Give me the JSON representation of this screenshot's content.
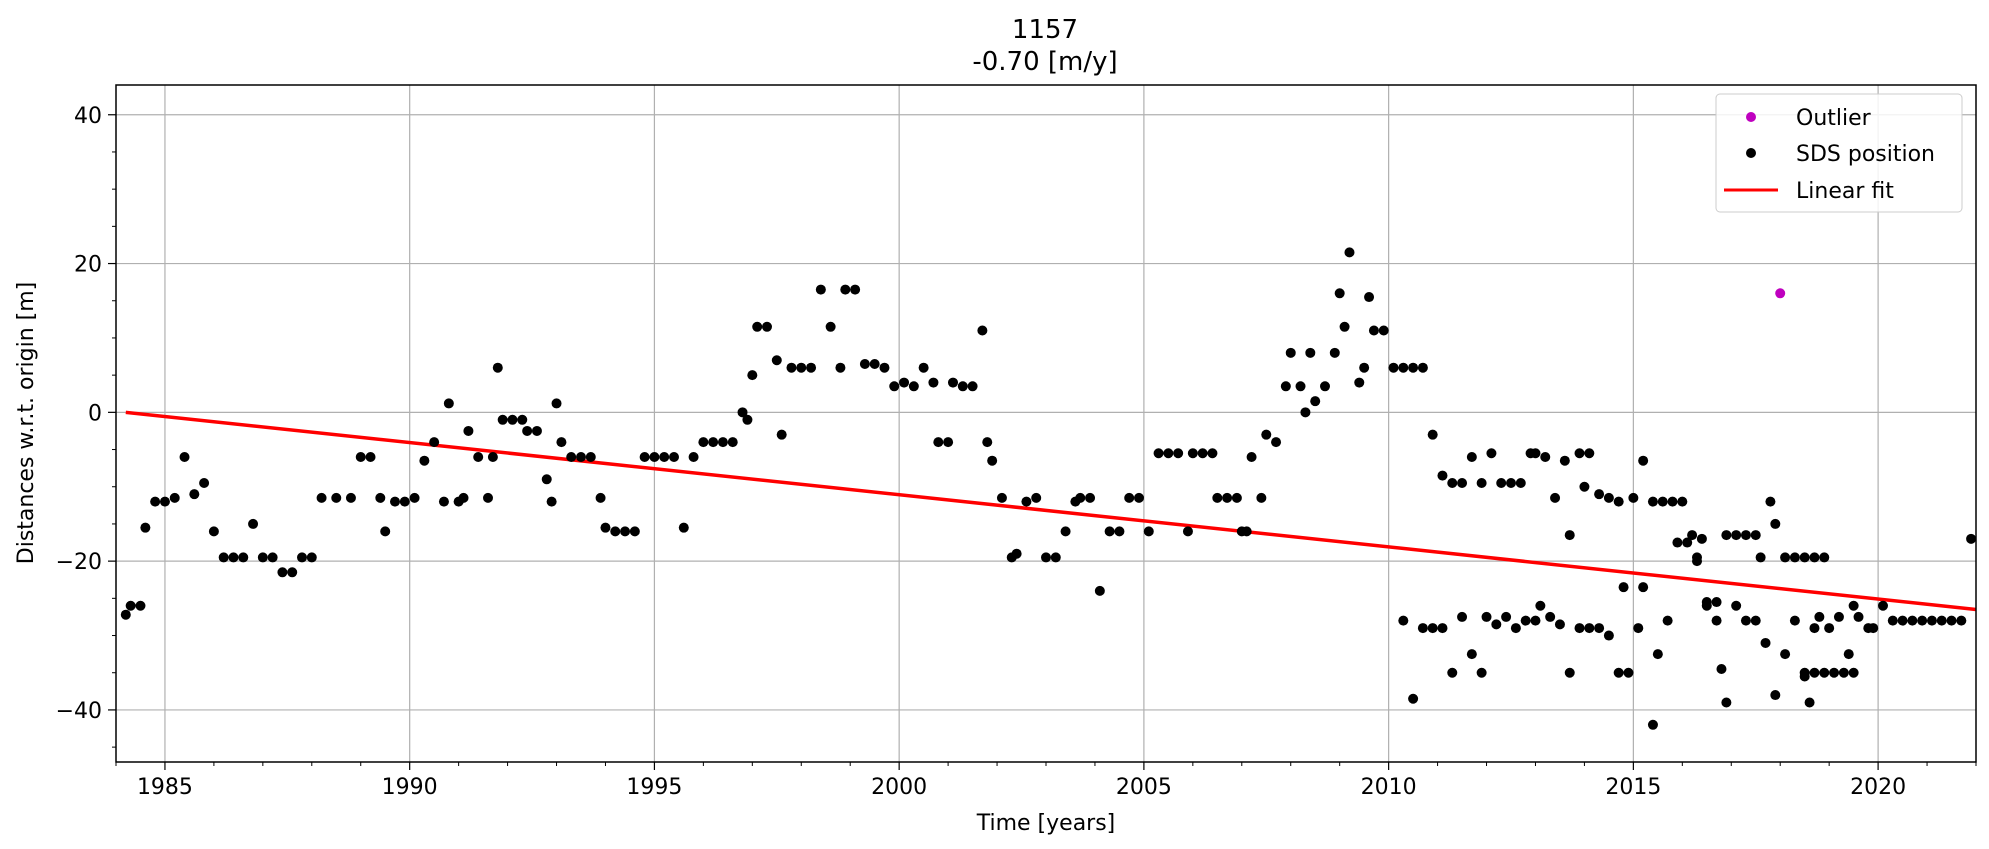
{
  "chart_data": {
    "type": "scatter",
    "title": "1157",
    "subtitle": "-0.70 [m/y]",
    "xlabel": "Time [years]",
    "ylabel": "Distances w.r.t. origin [m]",
    "xlim": [
      1984.0,
      2022.0
    ],
    "ylim": [
      -47,
      44
    ],
    "xticks": [
      1985,
      1990,
      1995,
      2000,
      2005,
      2010,
      2015,
      2020
    ],
    "yticks": [
      -40,
      -20,
      0,
      20,
      40
    ],
    "grid": true,
    "legend_position": "top-right",
    "colors": {
      "outlier": "#bf00bf",
      "sds": "#000000",
      "fit": "#ff0000",
      "grid": "#b0b0b0"
    },
    "legend": [
      "Outlier",
      "SDS position",
      "Linear fit"
    ],
    "series": [
      {
        "name": "Outlier",
        "marker": "dot",
        "points": [
          [
            2018.0,
            16
          ]
        ]
      },
      {
        "name": "SDS position",
        "marker": "dot",
        "points": [
          [
            1984.2,
            -27.2
          ],
          [
            1984.3,
            -26
          ],
          [
            1984.5,
            -26
          ],
          [
            1984.6,
            -15.5
          ],
          [
            1984.8,
            -12
          ],
          [
            1985.0,
            -12
          ],
          [
            1985.2,
            -11.5
          ],
          [
            1985.4,
            -6
          ],
          [
            1985.6,
            -11
          ],
          [
            1985.8,
            -9.5
          ],
          [
            1986.0,
            -16
          ],
          [
            1986.2,
            -19.5
          ],
          [
            1986.4,
            -19.5
          ],
          [
            1986.6,
            -19.5
          ],
          [
            1986.8,
            -15
          ],
          [
            1987.0,
            -19.5
          ],
          [
            1987.2,
            -19.5
          ],
          [
            1987.4,
            -21.5
          ],
          [
            1987.6,
            -21.5
          ],
          [
            1987.8,
            -19.5
          ],
          [
            1988.0,
            -19.5
          ],
          [
            1988.2,
            -11.5
          ],
          [
            1988.5,
            -11.5
          ],
          [
            1988.8,
            -11.5
          ],
          [
            1989.0,
            -6
          ],
          [
            1989.2,
            -6
          ],
          [
            1989.4,
            -11.5
          ],
          [
            1989.5,
            -16
          ],
          [
            1989.7,
            -12
          ],
          [
            1989.9,
            -12
          ],
          [
            1990.1,
            -11.5
          ],
          [
            1990.3,
            -6.5
          ],
          [
            1990.5,
            -4
          ],
          [
            1990.7,
            -12
          ],
          [
            1990.8,
            1.2
          ],
          [
            1991.0,
            -12
          ],
          [
            1991.1,
            -11.5
          ],
          [
            1991.2,
            -2.5
          ],
          [
            1991.4,
            -6
          ],
          [
            1991.6,
            -11.5
          ],
          [
            1991.7,
            -6
          ],
          [
            1991.8,
            6
          ],
          [
            1991.9,
            -1
          ],
          [
            1992.1,
            -1
          ],
          [
            1992.3,
            -1
          ],
          [
            1992.4,
            -2.5
          ],
          [
            1992.6,
            -2.5
          ],
          [
            1992.8,
            -9
          ],
          [
            1992.9,
            -12
          ],
          [
            1993.0,
            1.2
          ],
          [
            1993.1,
            -4
          ],
          [
            1993.3,
            -6
          ],
          [
            1993.5,
            -6
          ],
          [
            1993.7,
            -6
          ],
          [
            1993.9,
            -11.5
          ],
          [
            1994.0,
            -15.5
          ],
          [
            1994.2,
            -16
          ],
          [
            1994.4,
            -16
          ],
          [
            1994.6,
            -16
          ],
          [
            1994.8,
            -6
          ],
          [
            1995.0,
            -6
          ],
          [
            1995.2,
            -6
          ],
          [
            1995.4,
            -6
          ],
          [
            1995.6,
            -15.5
          ],
          [
            1995.8,
            -6
          ],
          [
            1996.0,
            -4
          ],
          [
            1996.2,
            -4
          ],
          [
            1996.4,
            -4
          ],
          [
            1996.6,
            -4
          ],
          [
            1996.8,
            0
          ],
          [
            1996.9,
            -1
          ],
          [
            1997.0,
            5
          ],
          [
            1997.1,
            11.5
          ],
          [
            1997.3,
            11.5
          ],
          [
            1997.5,
            7
          ],
          [
            1997.6,
            -3
          ],
          [
            1997.8,
            6
          ],
          [
            1998.0,
            6
          ],
          [
            1998.2,
            6
          ],
          [
            1998.4,
            16.5
          ],
          [
            1998.6,
            11.5
          ],
          [
            1998.8,
            6
          ],
          [
            1998.9,
            16.5
          ],
          [
            1999.1,
            16.5
          ],
          [
            1999.3,
            6.5
          ],
          [
            1999.5,
            6.5
          ],
          [
            1999.7,
            6
          ],
          [
            1999.9,
            3.5
          ],
          [
            2000.1,
            4
          ],
          [
            2000.3,
            3.5
          ],
          [
            2000.5,
            6
          ],
          [
            2000.7,
            4
          ],
          [
            2000.8,
            -4
          ],
          [
            2001.0,
            -4
          ],
          [
            2001.1,
            4
          ],
          [
            2001.3,
            3.5
          ],
          [
            2001.5,
            3.5
          ],
          [
            2001.7,
            11
          ],
          [
            2001.8,
            -4
          ],
          [
            2001.9,
            -6.5
          ],
          [
            2002.1,
            -11.5
          ],
          [
            2002.3,
            -19.5
          ],
          [
            2002.4,
            -19
          ],
          [
            2002.6,
            -12
          ],
          [
            2002.8,
            -11.5
          ],
          [
            2003.0,
            -19.5
          ],
          [
            2003.2,
            -19.5
          ],
          [
            2003.4,
            -16
          ],
          [
            2003.6,
            -12
          ],
          [
            2003.7,
            -11.5
          ],
          [
            2003.9,
            -11.5
          ],
          [
            2004.1,
            -24
          ],
          [
            2004.3,
            -16
          ],
          [
            2004.5,
            -16
          ],
          [
            2004.7,
            -11.5
          ],
          [
            2004.9,
            -11.5
          ],
          [
            2005.1,
            -16
          ],
          [
            2005.3,
            -5.5
          ],
          [
            2005.5,
            -5.5
          ],
          [
            2005.7,
            -5.5
          ],
          [
            2005.9,
            -16
          ],
          [
            2006.0,
            -5.5
          ],
          [
            2006.2,
            -5.5
          ],
          [
            2006.4,
            -5.5
          ],
          [
            2006.5,
            -11.5
          ],
          [
            2006.7,
            -11.5
          ],
          [
            2006.9,
            -11.5
          ],
          [
            2007.0,
            -16
          ],
          [
            2007.1,
            -16
          ],
          [
            2007.2,
            -6
          ],
          [
            2007.4,
            -11.5
          ],
          [
            2007.5,
            -3
          ],
          [
            2007.7,
            -4
          ],
          [
            2007.9,
            3.5
          ],
          [
            2008.0,
            8
          ],
          [
            2008.2,
            3.5
          ],
          [
            2008.3,
            0
          ],
          [
            2008.4,
            8
          ],
          [
            2008.5,
            1.5
          ],
          [
            2008.7,
            3.5
          ],
          [
            2008.9,
            8
          ],
          [
            2009.0,
            16
          ],
          [
            2009.1,
            11.5
          ],
          [
            2009.2,
            21.5
          ],
          [
            2009.4,
            4
          ],
          [
            2009.5,
            6
          ],
          [
            2009.6,
            15.5
          ],
          [
            2009.7,
            11
          ],
          [
            2009.9,
            11
          ],
          [
            2010.1,
            6
          ],
          [
            2010.3,
            6
          ],
          [
            2010.5,
            6
          ],
          [
            2010.7,
            6
          ],
          [
            2010.9,
            -3
          ],
          [
            2011.1,
            -8.5
          ],
          [
            2011.3,
            -9.5
          ],
          [
            2011.5,
            -9.5
          ],
          [
            2011.7,
            -6
          ],
          [
            2011.9,
            -9.5
          ],
          [
            2012.1,
            -5.5
          ],
          [
            2012.3,
            -9.5
          ],
          [
            2012.5,
            -9.5
          ],
          [
            2012.7,
            -9.5
          ],
          [
            2012.9,
            -5.5
          ],
          [
            2013.0,
            -5.5
          ],
          [
            2013.2,
            -6
          ],
          [
            2013.4,
            -11.5
          ],
          [
            2013.6,
            -6.5
          ],
          [
            2013.7,
            -16.5
          ],
          [
            2013.9,
            -5.5
          ],
          [
            2014.0,
            -10
          ],
          [
            2014.1,
            -5.5
          ],
          [
            2014.3,
            -11
          ],
          [
            2014.5,
            -11.5
          ],
          [
            2014.7,
            -12
          ],
          [
            2014.8,
            -23.5
          ],
          [
            2015.0,
            -11.5
          ],
          [
            2015.2,
            -6.5
          ],
          [
            2015.4,
            -12
          ],
          [
            2015.6,
            -12
          ],
          [
            2015.8,
            -12
          ],
          [
            2016.0,
            -12
          ],
          [
            2016.2,
            -16.5
          ],
          [
            2016.3,
            -19.5
          ],
          [
            2016.5,
            -25.5
          ],
          [
            2016.7,
            -25.5
          ],
          [
            2016.9,
            -16.5
          ],
          [
            2017.1,
            -16.5
          ],
          [
            2017.3,
            -16.5
          ],
          [
            2017.5,
            -16.5
          ],
          [
            2017.6,
            -19.5
          ],
          [
            2017.8,
            -12
          ],
          [
            2017.9,
            -15
          ],
          [
            2018.1,
            -19.5
          ],
          [
            2018.3,
            -19.5
          ],
          [
            2018.5,
            -19.5
          ],
          [
            2018.7,
            -19.5
          ],
          [
            2018.9,
            -19.5
          ],
          [
            2018.5,
            -35.5
          ],
          [
            2018.6,
            -39
          ],
          [
            2018.7,
            -29
          ],
          [
            2018.8,
            -27.5
          ],
          [
            2019.0,
            -29
          ],
          [
            2019.2,
            -27.5
          ],
          [
            2019.4,
            -32.5
          ],
          [
            2019.5,
            -35
          ],
          [
            2019.6,
            -27.5
          ],
          [
            2019.8,
            -29
          ],
          [
            2019.9,
            -29
          ],
          [
            2020.1,
            -26
          ],
          [
            2020.3,
            -28
          ],
          [
            2020.5,
            -28
          ],
          [
            2020.7,
            -28
          ],
          [
            2020.9,
            -28
          ],
          [
            2021.1,
            -28
          ],
          [
            2021.3,
            -28
          ],
          [
            2021.5,
            -28
          ],
          [
            2021.7,
            -28
          ],
          [
            2021.9,
            -17
          ],
          [
            2010.3,
            -28
          ],
          [
            2010.5,
            -38.5
          ],
          [
            2010.7,
            -29
          ],
          [
            2010.9,
            -29
          ],
          [
            2011.1,
            -29
          ],
          [
            2011.3,
            -35
          ],
          [
            2011.5,
            -27.5
          ],
          [
            2011.7,
            -32.5
          ],
          [
            2011.9,
            -35
          ],
          [
            2012.0,
            -27.5
          ],
          [
            2012.2,
            -28.5
          ],
          [
            2012.4,
            -27.5
          ],
          [
            2012.6,
            -29
          ],
          [
            2012.8,
            -28
          ],
          [
            2013.0,
            -28
          ],
          [
            2013.1,
            -26
          ],
          [
            2013.3,
            -27.5
          ],
          [
            2013.5,
            -28.5
          ],
          [
            2013.7,
            -35
          ],
          [
            2013.9,
            -29
          ],
          [
            2014.1,
            -29
          ],
          [
            2014.3,
            -29
          ],
          [
            2014.5,
            -30
          ],
          [
            2014.7,
            -35
          ],
          [
            2014.9,
            -35
          ],
          [
            2015.1,
            -29
          ],
          [
            2015.2,
            -23.5
          ],
          [
            2015.4,
            -42
          ],
          [
            2015.5,
            -32.5
          ],
          [
            2015.7,
            -28
          ],
          [
            2015.9,
            -17.5
          ],
          [
            2016.1,
            -17.5
          ],
          [
            2016.3,
            -20
          ],
          [
            2016.4,
            -17
          ],
          [
            2016.5,
            -26
          ],
          [
            2016.7,
            -28
          ],
          [
            2016.8,
            -34.5
          ],
          [
            2016.9,
            -39
          ],
          [
            2017.1,
            -26
          ],
          [
            2017.3,
            -28
          ],
          [
            2017.5,
            -28
          ],
          [
            2017.7,
            -31
          ],
          [
            2017.9,
            -38
          ],
          [
            2018.1,
            -32.5
          ],
          [
            2018.3,
            -28
          ],
          [
            2018.5,
            -35
          ],
          [
            2018.7,
            -35
          ],
          [
            2018.9,
            -35
          ],
          [
            2019.1,
            -35
          ],
          [
            2019.3,
            -35
          ],
          [
            2019.5,
            -26
          ]
        ]
      },
      {
        "name": "Linear fit",
        "marker": "line",
        "points": [
          [
            1984.2,
            0
          ],
          [
            2022.0,
            -26.5
          ]
        ]
      }
    ]
  }
}
